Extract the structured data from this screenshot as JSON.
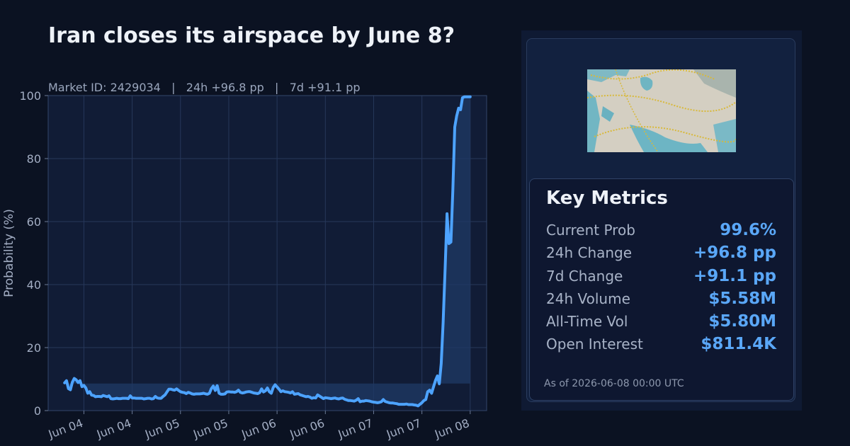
{
  "header": {
    "title": "Iran closes its airspace by June 8?",
    "subtitle": "Market ID: 2429034   |   24h +96.8 pp   |   7d +91.1 pp"
  },
  "colors": {
    "background": "#0b1222",
    "plot_background": "#111c36",
    "line": "#4da3ff",
    "fill": "#1f3a66",
    "grid": "#26375a",
    "accent_value": "#5aa7f7"
  },
  "chart_data": {
    "type": "line",
    "title": "Iran closes its airspace by June 8?",
    "ylabel": "Probability (%)",
    "xlabel": "",
    "ylim": [
      0,
      100
    ],
    "yticks": [
      0,
      20,
      40,
      60,
      80,
      100
    ],
    "xlim_days": [
      3.63,
      8.17
    ],
    "xticks": [
      {
        "at": 4.0,
        "label": "Jun 04"
      },
      {
        "at": 4.5,
        "label": "Jun 04"
      },
      {
        "at": 5.0,
        "label": "Jun 05"
      },
      {
        "at": 5.5,
        "label": "Jun 05"
      },
      {
        "at": 6.0,
        "label": "Jun 06"
      },
      {
        "at": 6.5,
        "label": "Jun 06"
      },
      {
        "at": 7.0,
        "label": "Jun 07"
      },
      {
        "at": 7.5,
        "label": "Jun 07"
      },
      {
        "at": 8.0,
        "label": "Jun 08"
      }
    ],
    "grid": true,
    "baseline_fill_level": 8.6,
    "series": [
      {
        "name": "",
        "x": [
          3.8,
          3.82,
          3.84,
          3.86,
          3.88,
          3.9,
          3.92,
          3.94,
          3.96,
          3.98,
          4.0,
          4.02,
          4.04,
          4.06,
          4.08,
          4.1,
          4.12,
          4.14,
          4.16,
          4.18,
          4.2,
          4.22,
          4.24,
          4.26,
          4.28,
          4.3,
          4.32,
          4.34,
          4.36,
          4.38,
          4.4,
          4.42,
          4.44,
          4.46,
          4.48,
          4.5,
          4.52,
          4.54,
          4.56,
          4.58,
          4.6,
          4.62,
          4.64,
          4.66,
          4.68,
          4.7,
          4.72,
          4.74,
          4.76,
          4.78,
          4.8,
          4.82,
          4.84,
          4.86,
          4.88,
          4.9,
          4.92,
          4.94,
          4.96,
          4.98,
          5.0,
          5.02,
          5.04,
          5.06,
          5.08,
          5.1,
          5.12,
          5.14,
          5.16,
          5.18,
          5.2,
          5.22,
          5.24,
          5.26,
          5.28,
          5.3,
          5.32,
          5.34,
          5.36,
          5.38,
          5.4,
          5.42,
          5.44,
          5.46,
          5.48,
          5.5,
          5.52,
          5.54,
          5.56,
          5.58,
          5.6,
          5.62,
          5.64,
          5.66,
          5.68,
          5.7,
          5.72,
          5.74,
          5.76,
          5.78,
          5.8,
          5.82,
          5.84,
          5.86,
          5.88,
          5.9,
          5.92,
          5.94,
          5.96,
          5.98,
          6.0,
          6.02,
          6.04,
          6.06,
          6.08,
          6.1,
          6.12,
          6.14,
          6.16,
          6.18,
          6.2,
          6.22,
          6.24,
          6.26,
          6.28,
          6.3,
          6.32,
          6.34,
          6.36,
          6.38,
          6.4,
          6.42,
          6.44,
          6.46,
          6.48,
          6.5,
          6.52,
          6.54,
          6.56,
          6.58,
          6.6,
          6.62,
          6.64,
          6.66,
          6.68,
          6.7,
          6.72,
          6.74,
          6.76,
          6.78,
          6.8,
          6.82,
          6.84,
          6.86,
          6.88,
          6.9,
          6.92,
          6.94,
          6.96,
          6.98,
          7.0,
          7.02,
          7.04,
          7.06,
          7.08,
          7.1,
          7.12,
          7.14,
          7.16,
          7.18,
          7.2,
          7.22,
          7.24,
          7.26,
          7.28,
          7.3,
          7.32,
          7.34,
          7.36,
          7.38,
          7.4,
          7.42,
          7.44,
          7.46,
          7.48,
          7.5,
          7.52,
          7.54,
          7.56,
          7.58,
          7.6,
          7.62,
          7.64,
          7.66,
          7.68,
          7.7,
          7.72,
          7.74,
          7.76,
          7.78,
          7.8,
          7.82,
          7.84,
          7.86,
          7.88,
          7.9,
          7.92,
          7.94,
          7.96,
          7.98,
          8.0
        ],
        "y": [
          8.8,
          9.5,
          7.0,
          6.6,
          9.0,
          10.2,
          9.8,
          8.9,
          9.5,
          7.6,
          8.0,
          7.2,
          5.5,
          6.0,
          4.9,
          4.8,
          4.4,
          4.5,
          4.5,
          4.4,
          4.8,
          4.6,
          4.4,
          4.7,
          3.8,
          3.7,
          3.8,
          3.9,
          3.8,
          3.8,
          3.9,
          3.9,
          3.9,
          3.8,
          4.7,
          4.0,
          4.0,
          3.9,
          3.9,
          3.9,
          3.9,
          3.7,
          3.8,
          3.9,
          3.9,
          3.7,
          3.8,
          4.5,
          4.0,
          3.9,
          3.9,
          4.5,
          5.0,
          5.9,
          6.8,
          6.8,
          6.6,
          6.5,
          6.9,
          6.4,
          6.0,
          5.8,
          5.7,
          5.4,
          5.8,
          5.6,
          5.3,
          5.2,
          5.3,
          5.3,
          5.3,
          5.4,
          5.5,
          5.3,
          5.2,
          5.5,
          7.0,
          7.8,
          6.4,
          7.9,
          5.5,
          5.2,
          5.2,
          5.3,
          5.9,
          6.0,
          5.9,
          5.9,
          5.8,
          6.0,
          6.5,
          5.8,
          5.6,
          5.7,
          5.9,
          6.0,
          6.0,
          5.8,
          5.6,
          5.5,
          5.4,
          5.7,
          6.9,
          5.9,
          6.3,
          7.2,
          6.0,
          5.5,
          7.3,
          8.2,
          7.5,
          6.8,
          6.0,
          6.3,
          6.0,
          5.9,
          5.8,
          5.6,
          6.0,
          5.2,
          5.3,
          5.4,
          5.0,
          4.8,
          4.6,
          4.4,
          4.5,
          4.3,
          3.9,
          4.1,
          4.0,
          5.0,
          4.6,
          4.2,
          3.8,
          4.1,
          4.0,
          3.9,
          3.8,
          3.9,
          4.0,
          3.8,
          3.7,
          3.9,
          4.0,
          3.6,
          3.4,
          3.2,
          3.2,
          3.1,
          3.0,
          3.3,
          3.8,
          2.8,
          3.0,
          3.0,
          3.2,
          3.1,
          3.0,
          2.8,
          2.7,
          2.6,
          2.5,
          2.6,
          2.8,
          3.5,
          2.9,
          2.7,
          2.5,
          2.4,
          2.4,
          2.3,
          2.2,
          2.0,
          2.0,
          2.0,
          2.0,
          2.1,
          1.9,
          1.9,
          1.9,
          1.8,
          1.7,
          1.5,
          2.0,
          2.5,
          3.2,
          3.5,
          6.0,
          6.5,
          5.5,
          7.5,
          9.5,
          11.0,
          8.5,
          15.0,
          28.0,
          45.0,
          62.5,
          53.0,
          53.5,
          70.0,
          90.0,
          93.5,
          96.0,
          95.5,
          99.3,
          99.6,
          99.6,
          99.6,
          99.6
        ]
      }
    ]
  },
  "panel": {
    "map_image_name": "iran-airspace-flight-map",
    "metrics_title": "Key Metrics",
    "metrics": [
      {
        "label": "Current Prob",
        "value": "99.6%"
      },
      {
        "label": "24h Change",
        "value": "+96.8 pp"
      },
      {
        "label": "7d Change",
        "value": "+91.1 pp"
      },
      {
        "label": "24h Volume",
        "value": "$5.58M"
      },
      {
        "label": "All-Time Vol",
        "value": "$5.80M"
      },
      {
        "label": "Open Interest",
        "value": "$811.4K"
      }
    ],
    "as_of": "As of 2026-06-08 00:00 UTC"
  }
}
